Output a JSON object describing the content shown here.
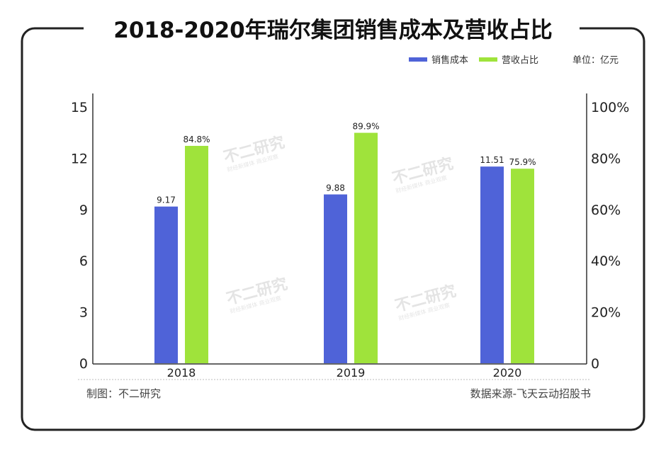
{
  "chart_data": {
    "type": "bar",
    "title": "2018-2020年瑞尔集团销售成本及营收占比",
    "categories": [
      "2018",
      "2019",
      "2020"
    ],
    "series": [
      {
        "name": "销售成本",
        "axis": "left",
        "values": [
          9.17,
          9.88,
          11.51
        ],
        "labels": [
          "9.17",
          "9.88",
          "11.51"
        ],
        "color": "#4f63d8"
      },
      {
        "name": "营收占比",
        "axis": "right",
        "values": [
          84.8,
          89.9,
          75.9
        ],
        "labels": [
          "84.8%",
          "89.9%",
          "75.9%"
        ],
        "color": "#9fe33b"
      }
    ],
    "left_axis": {
      "ylim": [
        0,
        15
      ],
      "ticks": [
        "0",
        "3",
        "6",
        "9",
        "12",
        "15"
      ]
    },
    "right_axis": {
      "ylim": [
        0,
        100
      ],
      "ticks": [
        "0",
        "20%",
        "40%",
        "60%",
        "80%",
        "100%"
      ]
    },
    "unit": "单位：亿元",
    "legend_placement": "top-right",
    "grid": false
  },
  "footer": {
    "left": "制图：不二研究",
    "right": "数据来源-飞天云动招股书"
  },
  "watermark": {
    "text": "不二研究",
    "subtext": "财经新媒体 商业观察"
  }
}
